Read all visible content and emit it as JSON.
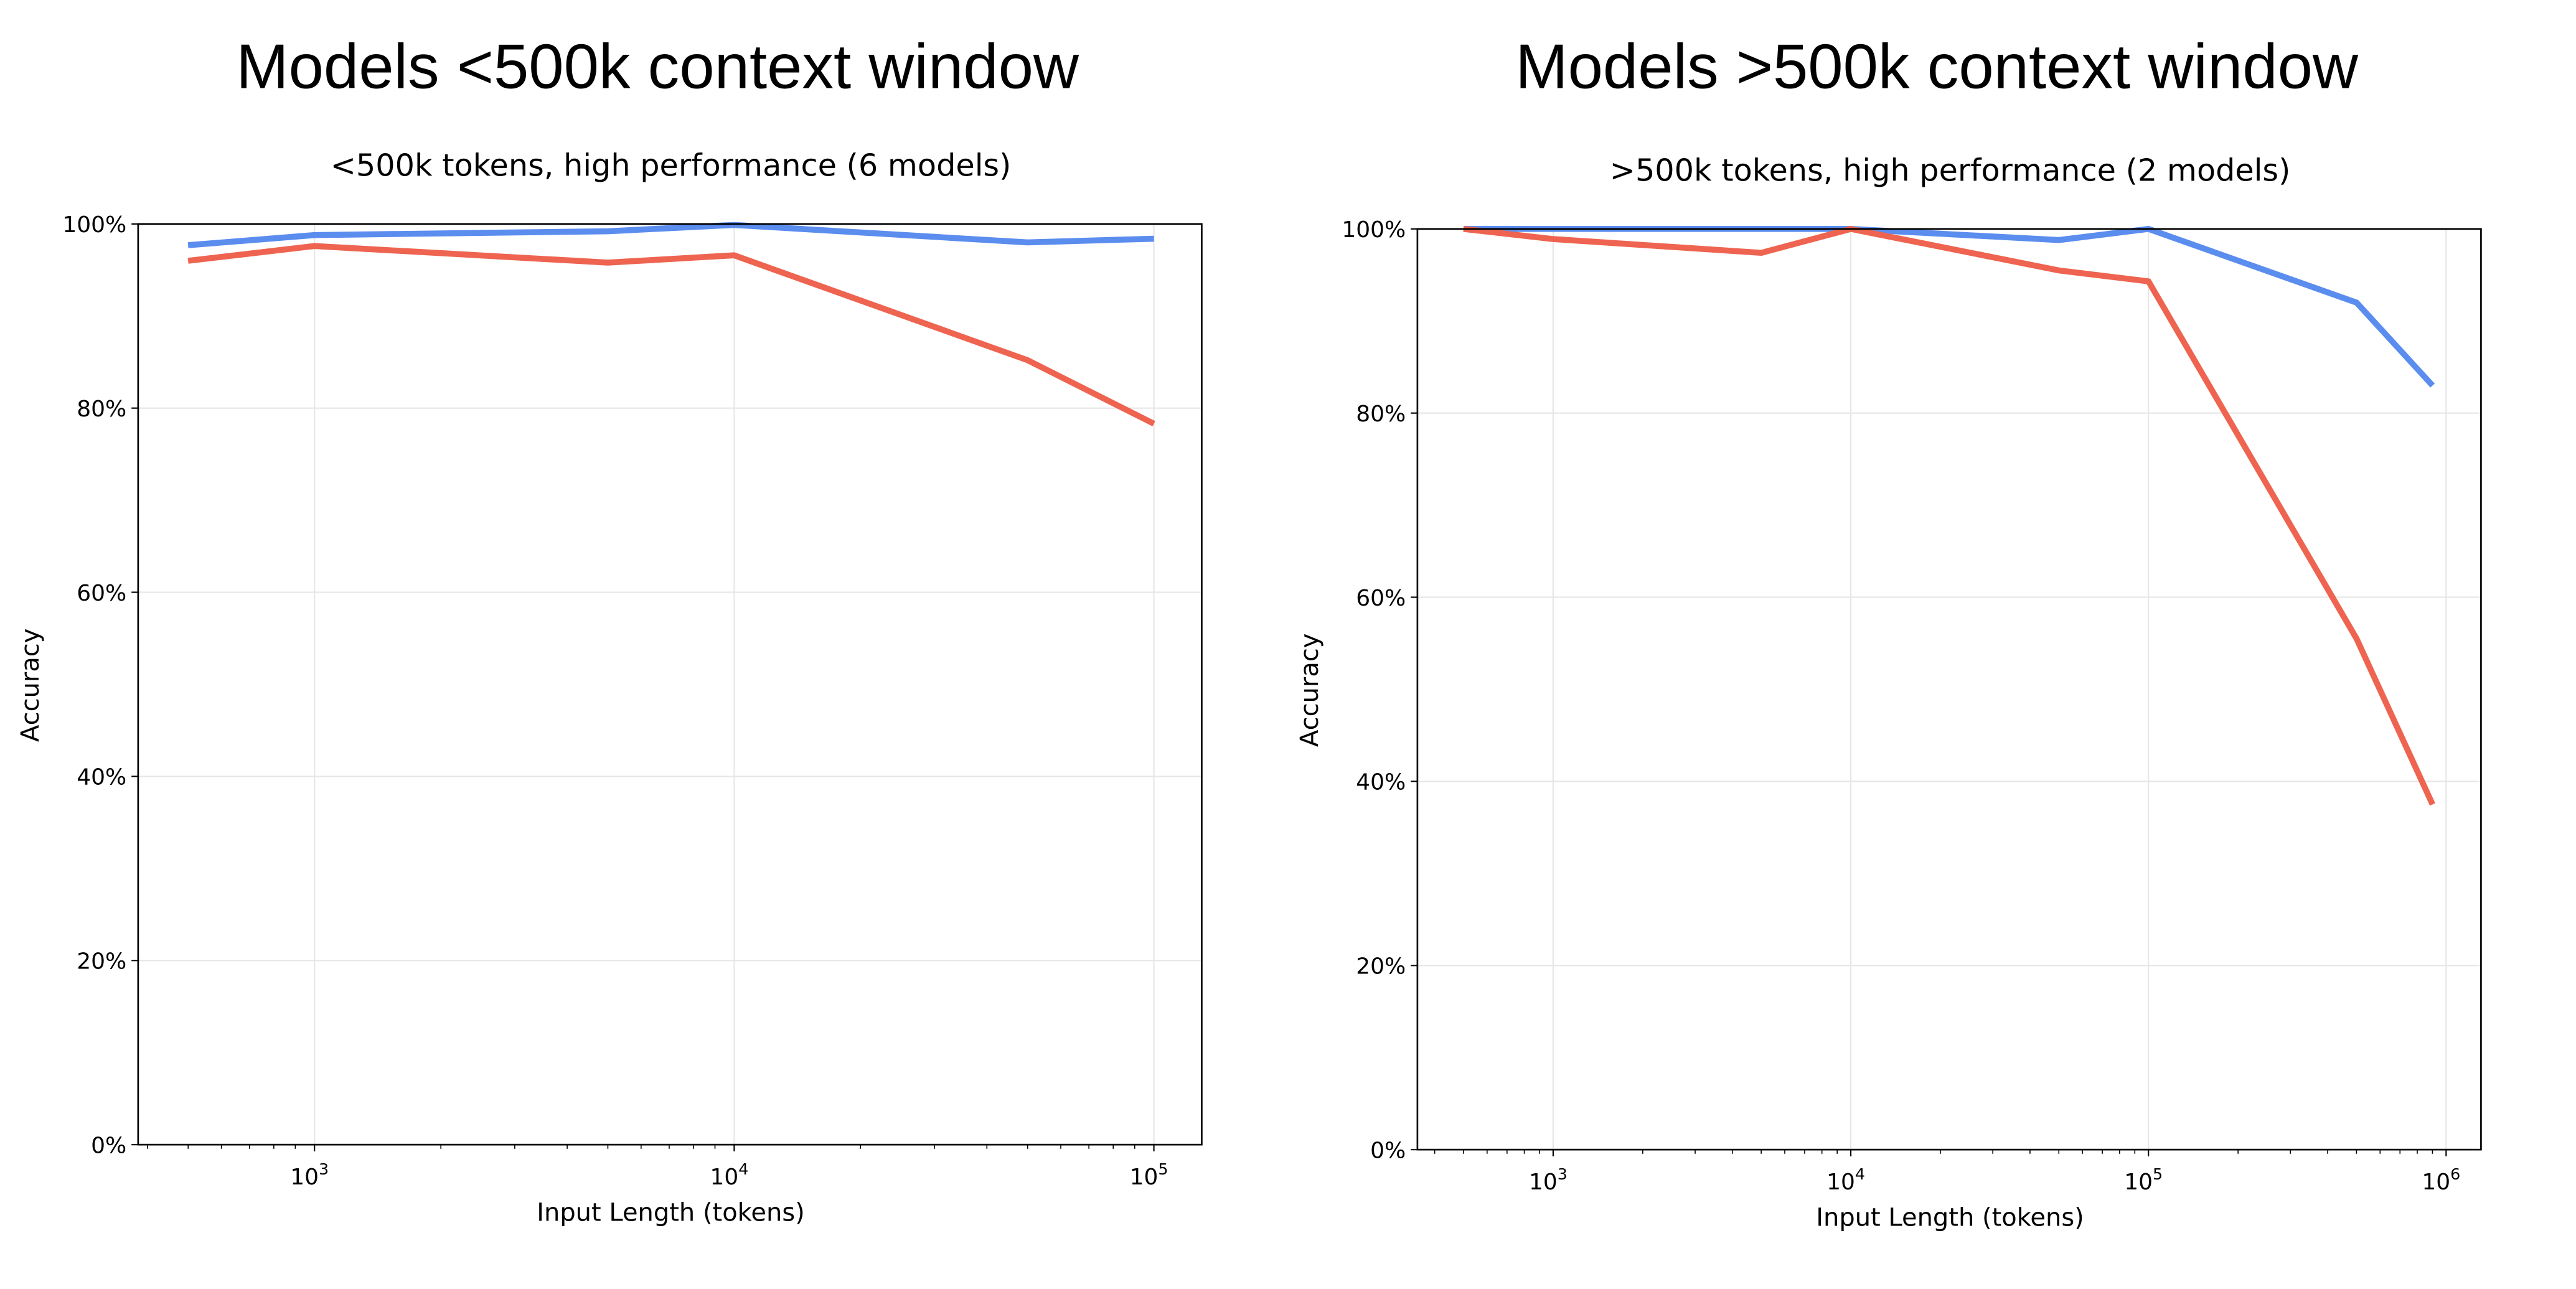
{
  "chart_data": [
    {
      "type": "line",
      "panel_title": "Models <500k context window",
      "title": "<500k tokens, high performance (6 models)",
      "xlabel": "Input Length (tokens)",
      "ylabel": "Accuracy",
      "xscale": "log",
      "xlim": [
        380,
        130000
      ],
      "ylim": [
        0,
        100
      ],
      "xticks": [
        1000,
        10000,
        100000
      ],
      "xtick_labels": [
        [
          "10",
          "3"
        ],
        [
          "10",
          "4"
        ],
        [
          "10",
          "5"
        ]
      ],
      "yticks": [
        0,
        20,
        40,
        60,
        80,
        100
      ],
      "ytick_labels": [
        "0%",
        "20%",
        "40%",
        "60%",
        "80%",
        "100%"
      ],
      "grid": true,
      "x": [
        500,
        1000,
        5000,
        10000,
        50000,
        100000
      ],
      "series": [
        {
          "color": "#5b8def",
          "values": [
            97.7,
            98.8,
            99.2,
            99.9,
            98.0,
            98.4
          ]
        },
        {
          "color": "#ee6450",
          "values": [
            96.0,
            97.6,
            95.8,
            96.6,
            85.2,
            78.3
          ]
        }
      ]
    },
    {
      "type": "line",
      "panel_title": "Models >500k context window",
      "title": ">500k tokens, high performance (2 models)",
      "xlabel": "Input Length (tokens)",
      "ylabel": "Accuracy",
      "xscale": "log",
      "xlim": [
        350,
        1310000
      ],
      "ylim": [
        0,
        100
      ],
      "xticks": [
        1000,
        10000,
        100000,
        1000000
      ],
      "xtick_labels": [
        [
          "10",
          "3"
        ],
        [
          "10",
          "4"
        ],
        [
          "10",
          "5"
        ],
        [
          "10",
          "6"
        ]
      ],
      "yticks": [
        0,
        20,
        40,
        60,
        80,
        100
      ],
      "ytick_labels": [
        "0%",
        "20%",
        "40%",
        "60%",
        "80%",
        "100%"
      ],
      "grid": true,
      "x": [
        500,
        1000,
        5000,
        10000,
        50000,
        100000,
        500000,
        900000
      ],
      "series": [
        {
          "color": "#5b8def",
          "values": [
            100,
            100,
            100,
            100,
            98.8,
            100,
            92.0,
            83.0
          ]
        },
        {
          "color": "#ee6450",
          "values": [
            100,
            98.9,
            97.4,
            100,
            95.5,
            94.3,
            55.5,
            37.5
          ]
        }
      ]
    }
  ]
}
